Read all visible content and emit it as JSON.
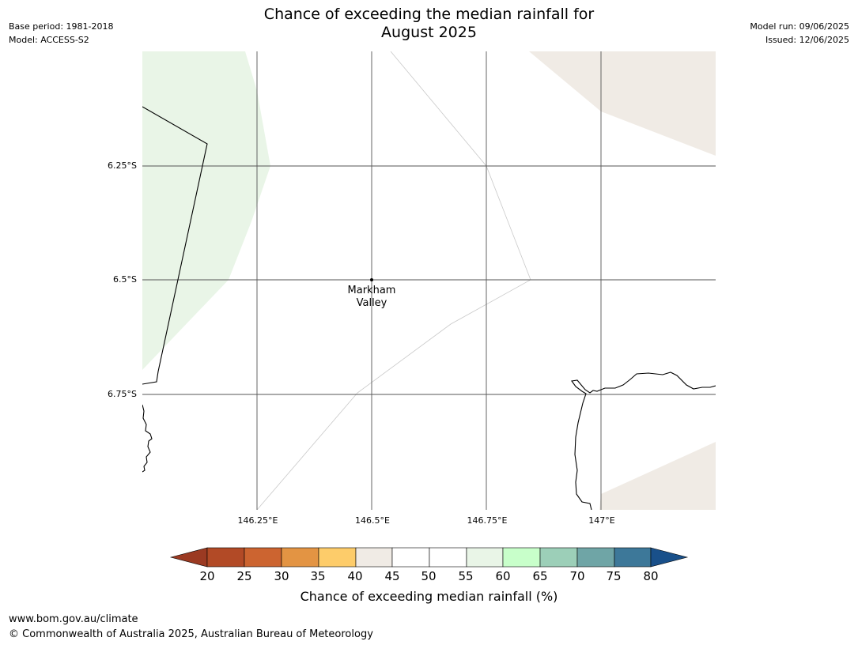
{
  "header": {
    "title_line1": "Chance of exceeding the median rainfall for",
    "title_line2": "August 2025",
    "base_period": "Base period: 1981-2018",
    "model": "Model: ACCESS-S2",
    "model_run": "Model run: 09/06/2025",
    "issued": "Issued: 12/06/2025"
  },
  "map": {
    "lat_labels": [
      "6.25°S",
      "6.5°S",
      "6.75°S"
    ],
    "lon_labels": [
      "146.25°E",
      "146.5°E",
      "146.75°E",
      "147°E"
    ],
    "place": {
      "name_line1": "Markham",
      "name_line2": "Valley"
    },
    "colors": {
      "land_light_green": "#e9f5e7",
      "land_beige": "#f0ebe5",
      "coastline": "#000000",
      "gridline": "#555555"
    }
  },
  "colorbar": {
    "label": "Chance of exceeding median rainfall (%)",
    "ticks": [
      "20",
      "25",
      "30",
      "35",
      "40",
      "45",
      "50",
      "55",
      "60",
      "65",
      "70",
      "75",
      "80"
    ],
    "colors": {
      "below_20": "#9b3a22",
      "20-25": "#b24a26",
      "25-30": "#cc6430",
      "30-35": "#e39443",
      "35-40": "#fdcc6a",
      "40-45": "#f0ebe5",
      "45-50": "#ffffff",
      "50-55": "#ffffff",
      "55-60": "#e9f5e7",
      "60-65": "#c8ffca",
      "65-70": "#9ccfb8",
      "70-75": "#6fa5a6",
      "75-80": "#3d7899",
      "above_80": "#19508a"
    }
  },
  "footer": {
    "url": "www.bom.gov.au/climate",
    "copyright": "© Commonwealth of Australia 2025, Australian Bureau of Meteorology"
  }
}
